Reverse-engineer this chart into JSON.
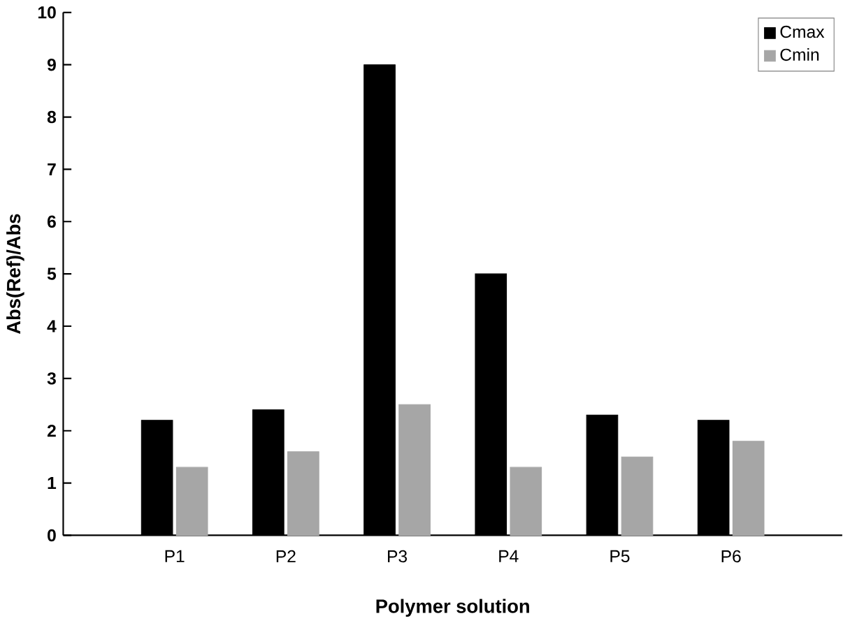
{
  "chart_data": {
    "type": "bar",
    "xlabel": "Polymer solution",
    "ylabel": "Abs(Ref)/Abs",
    "categories": [
      "P1",
      "P2",
      "P3",
      "P4",
      "P5",
      "P6"
    ],
    "series": [
      {
        "name": "Cmax",
        "color": "#000000",
        "values": [
          2.2,
          2.4,
          9.0,
          5.0,
          2.3,
          2.2
        ]
      },
      {
        "name": "Cmin",
        "color": "#a6a6a6",
        "values": [
          1.3,
          1.6,
          2.5,
          1.3,
          1.5,
          1.8
        ]
      }
    ],
    "ylim": [
      0,
      10
    ],
    "yticks": [
      0,
      1,
      2,
      3,
      4,
      5,
      6,
      7,
      8,
      9,
      10
    ],
    "grid": false,
    "legend": "top right"
  }
}
